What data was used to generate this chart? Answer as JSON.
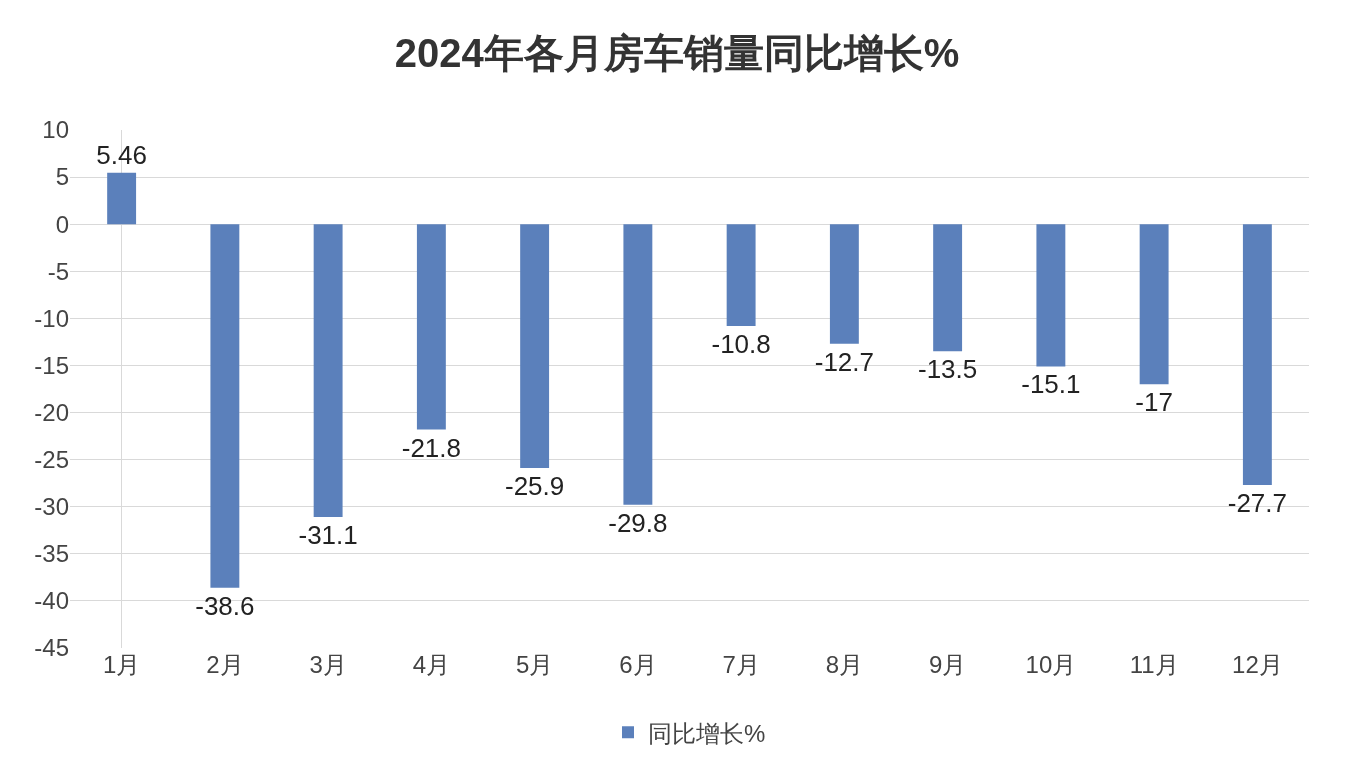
{
  "chart_data": {
    "type": "bar",
    "title": "2024年各月房车销量同比增长%",
    "categories": [
      "1月",
      "2月",
      "3月",
      "4月",
      "5月",
      "6月",
      "7月",
      "8月",
      "9月",
      "10月",
      "11月",
      "12月"
    ],
    "series": [
      {
        "name": "同比增长%",
        "color": "#5b80bb",
        "values": [
          5.46,
          -38.6,
          -31.1,
          -21.8,
          -25.9,
          -29.8,
          -10.8,
          -12.7,
          -13.5,
          -15.1,
          -17,
          -27.7
        ]
      }
    ],
    "ylim": [
      -45,
      10
    ],
    "yticks": [
      -45,
      -40,
      -35,
      -30,
      -25,
      -20,
      -15,
      -10,
      -5,
      0,
      5,
      10
    ],
    "grid": "y",
    "legend": "bottom",
    "data_labels": true
  }
}
